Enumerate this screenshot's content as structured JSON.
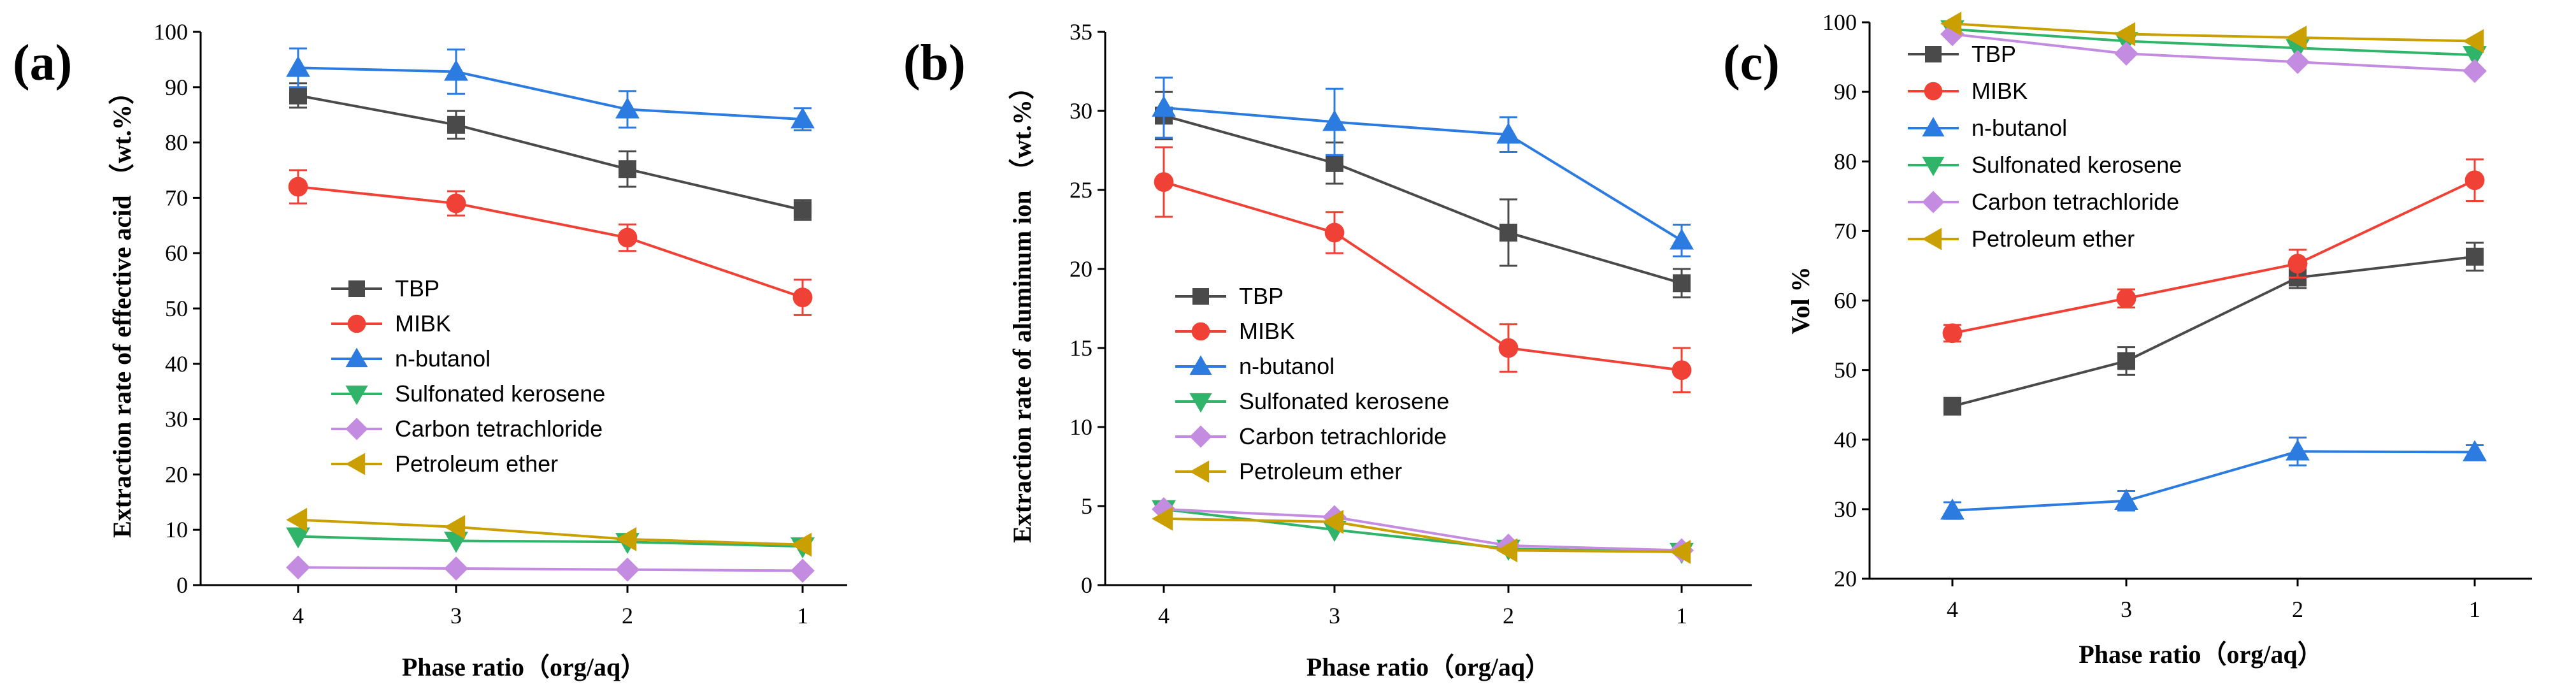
{
  "legend_names": [
    "TBP",
    "MIBK",
    "n-butanol",
    "Sulfonated kerosene",
    "Carbon tetrachloride",
    "Petroleum ether"
  ],
  "series_styles": [
    {
      "color": "#4a4a4a",
      "marker": "square"
    },
    {
      "color": "#ef4135",
      "marker": "circle"
    },
    {
      "color": "#2b7be0",
      "marker": "triangle-up"
    },
    {
      "color": "#2fb46a",
      "marker": "triangle-down"
    },
    {
      "color": "#c48ce0",
      "marker": "diamond"
    },
    {
      "color": "#c9a000",
      "marker": "triangle-left"
    }
  ],
  "chart_data": [
    {
      "panel": "(a)",
      "type": "line",
      "xlabel": "Phase ratio（org/aq）",
      "ylabel": "Extraction rate of effective acid （wt.%）",
      "categories": [
        "4",
        "3",
        "2",
        "1"
      ],
      "ylim": [
        0,
        100
      ],
      "yticks": [
        "0",
        "10",
        "20",
        "30",
        "40",
        "50",
        "60",
        "70",
        "80",
        "90",
        "100"
      ],
      "series": [
        {
          "name": "TBP",
          "values": [
            88.5,
            83.2,
            75.2,
            67.8
          ],
          "errors": [
            2.2,
            2.5,
            3.2,
            1.8
          ]
        },
        {
          "name": "MIBK",
          "values": [
            72.0,
            69.0,
            62.8,
            52.0
          ],
          "errors": [
            3.0,
            2.2,
            2.4,
            3.2
          ]
        },
        {
          "name": "n-butanol",
          "values": [
            93.5,
            92.8,
            86.0,
            84.2
          ],
          "errors": [
            3.5,
            4.0,
            3.3,
            2.0
          ]
        },
        {
          "name": "Sulfonated kerosene",
          "values": [
            8.8,
            8.0,
            7.8,
            7.0
          ],
          "errors": [
            0,
            0,
            0,
            0
          ]
        },
        {
          "name": "Carbon tetrachloride",
          "values": [
            3.2,
            3.0,
            2.8,
            2.6
          ],
          "errors": [
            0,
            0,
            0,
            0
          ]
        },
        {
          "name": "Petroleum ether",
          "values": [
            11.8,
            10.5,
            8.3,
            7.3
          ],
          "errors": [
            0,
            0,
            0,
            0
          ]
        }
      ]
    },
    {
      "panel": "(b)",
      "type": "line",
      "xlabel": "Phase ratio（org/aq）",
      "ylabel": "Extraction rate of aluminum ion （wt.%）",
      "categories": [
        "4",
        "3",
        "2",
        "1"
      ],
      "ylim": [
        0,
        35
      ],
      "yticks": [
        "0",
        "5",
        "10",
        "15",
        "20",
        "25",
        "30",
        "35"
      ],
      "series": [
        {
          "name": "TBP",
          "values": [
            29.7,
            26.7,
            22.3,
            19.1
          ],
          "errors": [
            1.5,
            1.3,
            2.1,
            0.9
          ]
        },
        {
          "name": "MIBK",
          "values": [
            25.5,
            22.3,
            15.0,
            13.6
          ],
          "errors": [
            2.2,
            1.3,
            1.5,
            1.4
          ]
        },
        {
          "name": "n-butanol",
          "values": [
            30.2,
            29.3,
            28.5,
            21.8
          ],
          "errors": [
            1.9,
            2.1,
            1.1,
            1.0
          ]
        },
        {
          "name": "Sulfonated kerosene",
          "values": [
            4.8,
            3.5,
            2.3,
            2.1
          ],
          "errors": [
            0,
            0,
            0,
            0
          ]
        },
        {
          "name": "Carbon tetrachloride",
          "values": [
            4.8,
            4.3,
            2.5,
            2.2
          ],
          "errors": [
            0,
            0,
            0,
            0
          ]
        },
        {
          "name": "Petroleum ether",
          "values": [
            4.2,
            4.0,
            2.2,
            2.1
          ],
          "errors": [
            0,
            0,
            0,
            0
          ]
        }
      ]
    },
    {
      "panel": "(c)",
      "type": "line",
      "xlabel": "Phase ratio（org/aq）",
      "ylabel": "Vol %",
      "categories": [
        "4",
        "3",
        "2",
        "1"
      ],
      "ylim": [
        20,
        100
      ],
      "yticks": [
        "20",
        "30",
        "40",
        "50",
        "60",
        "70",
        "80",
        "90",
        "100"
      ],
      "series": [
        {
          "name": "TBP",
          "values": [
            44.8,
            51.3,
            63.3,
            66.3
          ],
          "errors": [
            1.2,
            2.0,
            1.5,
            2.0
          ]
        },
        {
          "name": "MIBK",
          "values": [
            55.3,
            60.3,
            65.3,
            77.3
          ],
          "errors": [
            1.2,
            1.3,
            2.0,
            3.0
          ]
        },
        {
          "name": "n-butanol",
          "values": [
            29.8,
            31.2,
            38.3,
            38.2
          ],
          "errors": [
            1.2,
            1.4,
            2.0,
            1.0
          ]
        },
        {
          "name": "Sulfonated kerosene",
          "values": [
            99.0,
            97.3,
            96.3,
            95.3
          ],
          "errors": [
            0,
            0,
            0,
            0
          ]
        },
        {
          "name": "Carbon tetrachloride",
          "values": [
            98.3,
            95.5,
            94.3,
            93.0
          ],
          "errors": [
            0,
            0,
            0,
            0
          ]
        },
        {
          "name": "Petroleum ether",
          "values": [
            99.8,
            98.3,
            97.8,
            97.3
          ],
          "errors": [
            0,
            0,
            0,
            0
          ]
        }
      ]
    }
  ]
}
